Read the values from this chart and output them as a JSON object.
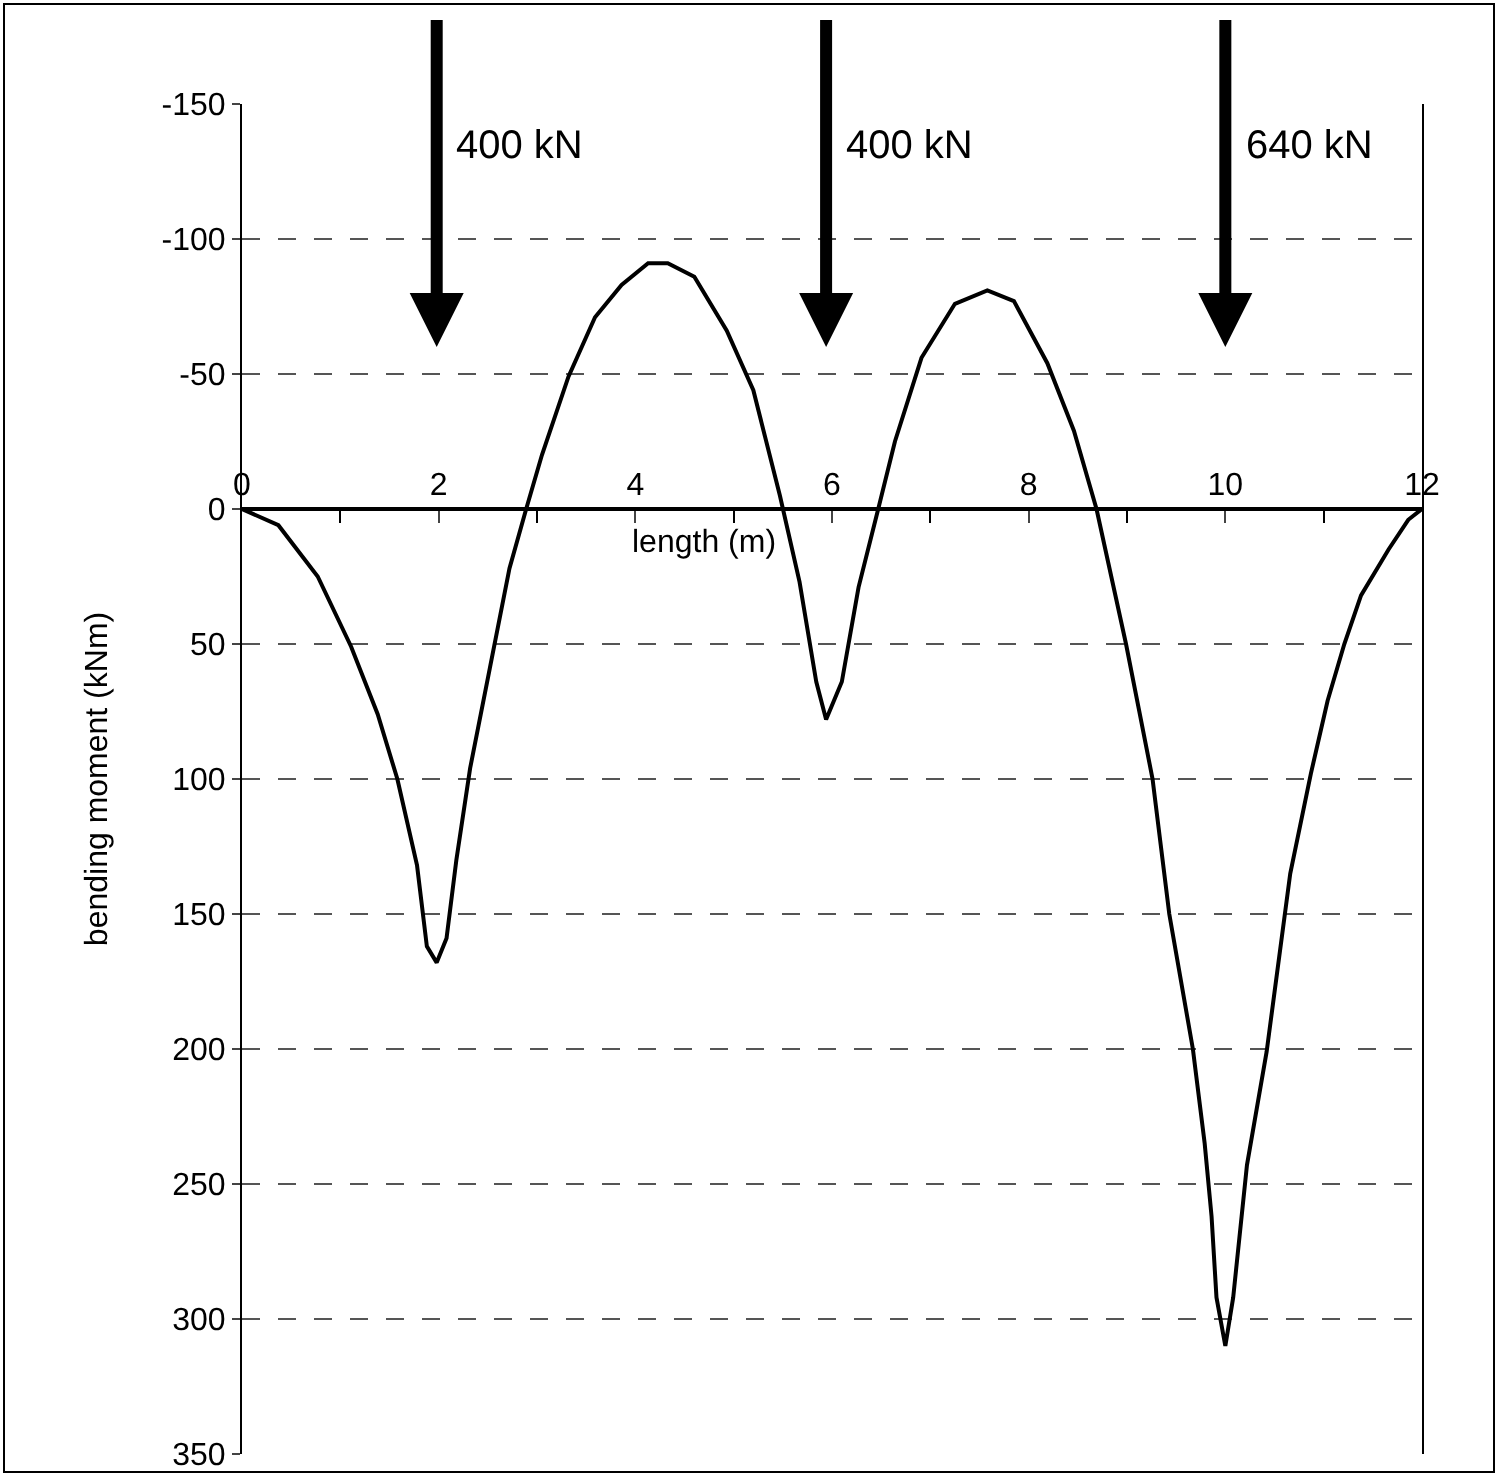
{
  "chart_data": {
    "type": "line",
    "xlabel": "length (m)",
    "ylabel": "bending moment (kNm)",
    "x": [
      0,
      0.37,
      0.77,
      1.11,
      1.38,
      1.58,
      1.78,
      1.88,
      1.98,
      2.08,
      2.18,
      2.32,
      2.52,
      2.72,
      2.89,
      3.05,
      3.32,
      3.59,
      3.86,
      4.13,
      4.33,
      4.6,
      4.93,
      5.2,
      5.47,
      5.67,
      5.84,
      5.94,
      6.1,
      6.27,
      6.47,
      6.64,
      6.91,
      7.25,
      7.58,
      7.85,
      8.19,
      8.46,
      8.69,
      8.99,
      9.12,
      9.26,
      9.43,
      9.67,
      9.79,
      9.86,
      9.91,
      10,
      10.08,
      10.22,
      10.42,
      10.66,
      10.87,
      11.04,
      11.21,
      11.38,
      11.66,
      11.86,
      12
    ],
    "series": [
      {
        "color": "#000000",
        "values": [
          0,
          6,
          25,
          51,
          76,
          100,
          132,
          162,
          168,
          159,
          130,
          96,
          59,
          22,
          0,
          -20,
          -49,
          -71,
          -83,
          -91,
          -91,
          -86,
          -66,
          -44,
          -5,
          27,
          64,
          78,
          64,
          29,
          0,
          -25,
          -56,
          -76,
          -81,
          -77,
          -54,
          -29,
          0,
          50,
          74,
          100,
          150,
          200,
          235,
          262,
          292,
          310,
          292,
          243,
          201,
          135,
          98,
          71,
          50,
          32,
          15,
          4,
          0
        ]
      }
    ],
    "xlim": [
      0,
      12
    ],
    "xticks": [
      0,
      2,
      4,
      6,
      8,
      10,
      12
    ],
    "ylim": [
      350,
      -150
    ],
    "yticks": [
      -150,
      -100,
      -50,
      0,
      50,
      100,
      150,
      200,
      250,
      300,
      350
    ],
    "grid": "y",
    "marker": "none",
    "line_style": "solid",
    "annotations": [
      "400 kN",
      "400 kN",
      "640 kN"
    ]
  }
}
